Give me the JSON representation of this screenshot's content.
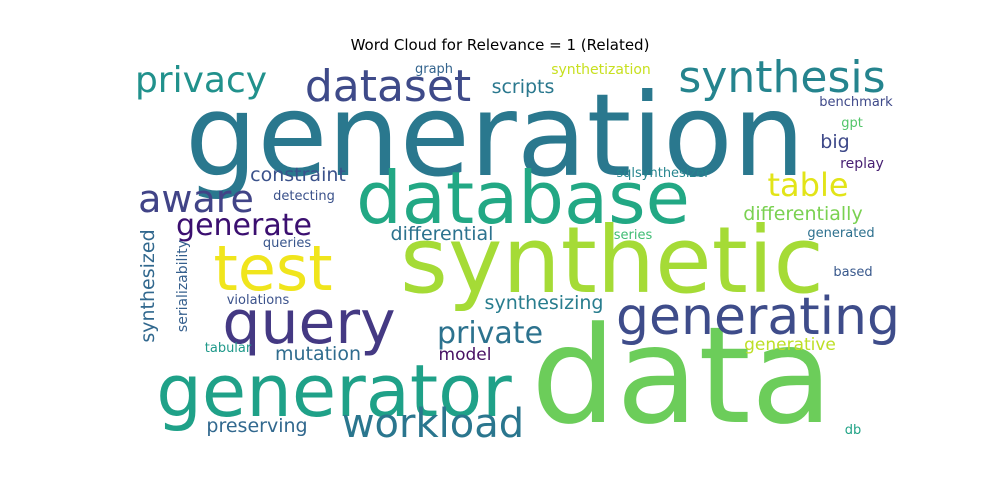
{
  "chart_data": {
    "type": "wordcloud",
    "title": "Word Cloud for Relevance = 1 (Related)",
    "words": [
      {
        "text": "generation",
        "weight": 1.0,
        "color": "#2a788e"
      },
      {
        "text": "data",
        "weight": 0.99,
        "color": "#6ccd5a"
      },
      {
        "text": "synthetic",
        "weight": 0.85,
        "color": "#a5db36"
      },
      {
        "text": "database",
        "weight": 0.66,
        "color": "#22a884"
      },
      {
        "text": "generator",
        "weight": 0.6,
        "color": "#1fa188"
      },
      {
        "text": "test",
        "weight": 0.53,
        "color": "#f0e51c"
      },
      {
        "text": "query",
        "weight": 0.51,
        "color": "#443983"
      },
      {
        "text": "generating",
        "weight": 0.43,
        "color": "#3e4c8a"
      },
      {
        "text": "dataset",
        "weight": 0.35,
        "color": "#3e4a89"
      },
      {
        "text": "synthesis",
        "weight": 0.35,
        "color": "#25848e"
      },
      {
        "text": "workload",
        "weight": 0.34,
        "color": "#2a768e"
      },
      {
        "text": "aware",
        "weight": 0.31,
        "color": "#414487"
      },
      {
        "text": "privacy",
        "weight": 0.3,
        "color": "#21918c"
      },
      {
        "text": "private",
        "weight": 0.27,
        "color": "#2c728e"
      },
      {
        "text": "generate",
        "weight": 0.27,
        "color": "#3b0f70"
      },
      {
        "text": "table",
        "weight": 0.27,
        "color": "#e2e418"
      },
      {
        "text": "differentially",
        "weight": 0.18,
        "color": "#7ad151"
      },
      {
        "text": "constraint",
        "weight": 0.17,
        "color": "#3b528b"
      },
      {
        "text": "synthesized",
        "weight": 0.17,
        "color": "#31688e"
      },
      {
        "text": "differential",
        "weight": 0.16,
        "color": "#2c728e"
      },
      {
        "text": "synthesizing",
        "weight": 0.16,
        "color": "#287d8e"
      },
      {
        "text": "mutation",
        "weight": 0.16,
        "color": "#2f6c8e"
      },
      {
        "text": "preserving",
        "weight": 0.16,
        "color": "#31688e"
      },
      {
        "text": "scripts",
        "weight": 0.16,
        "color": "#2a788e"
      },
      {
        "text": "generative",
        "weight": 0.15,
        "color": "#bddf26"
      },
      {
        "text": "model",
        "weight": 0.15,
        "color": "#471063"
      },
      {
        "text": "big",
        "weight": 0.15,
        "color": "#3e4989"
      },
      {
        "text": "serializability",
        "weight": 0.12,
        "color": "#355f8d"
      },
      {
        "text": "synthetization",
        "weight": 0.12,
        "color": "#c8e020"
      },
      {
        "text": "detecting",
        "weight": 0.11,
        "color": "#3b528b"
      },
      {
        "text": "replay",
        "weight": 0.11,
        "color": "#482173"
      },
      {
        "text": "gpt",
        "weight": 0.11,
        "color": "#52c569"
      },
      {
        "text": "sqlsynthesizer",
        "weight": 0.11,
        "color": "#25858e"
      },
      {
        "text": "benchmark",
        "weight": 0.1,
        "color": "#3e4989"
      },
      {
        "text": "graph",
        "weight": 0.1,
        "color": "#33638d"
      },
      {
        "text": "queries",
        "weight": 0.1,
        "color": "#39568c"
      },
      {
        "text": "series",
        "weight": 0.1,
        "color": "#3fbc73"
      },
      {
        "text": "generated",
        "weight": 0.1,
        "color": "#2d708e"
      },
      {
        "text": "based",
        "weight": 0.1,
        "color": "#38588c"
      },
      {
        "text": "violations",
        "weight": 0.1,
        "color": "#3b528b"
      },
      {
        "text": "tabular",
        "weight": 0.1,
        "color": "#1f998a"
      },
      {
        "text": "db",
        "weight": 0.1,
        "color": "#20a386"
      }
    ]
  }
}
